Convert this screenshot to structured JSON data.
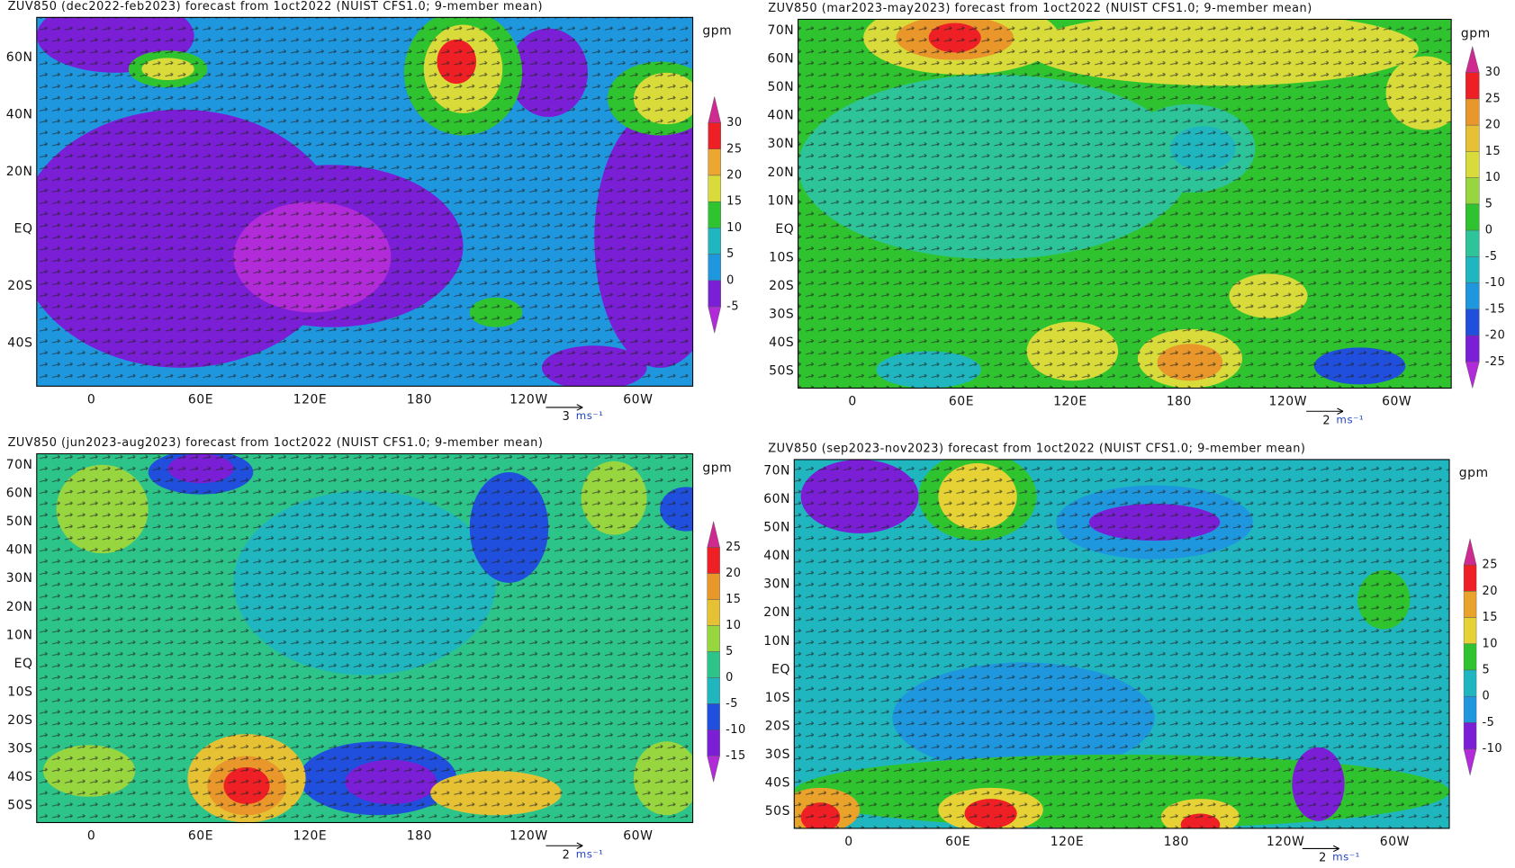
{
  "panels": [
    {
      "title": "ZUV850 (dec2022-feb2023) forecast from 1oct2022 (NUIST CFS1.0; 9-member mean)",
      "unit": "gpm",
      "lat_labels": [
        "60N",
        "40N",
        "20N",
        "EQ",
        "20S",
        "40S"
      ],
      "lon_labels": [
        "0",
        "60E",
        "120E",
        "180",
        "120W",
        "60W"
      ],
      "colorbar": {
        "labels": [
          30,
          25,
          20,
          15,
          10,
          5,
          0,
          -5
        ],
        "colors": [
          "#cf2a90",
          "#ee1f25",
          "#eca731",
          "#d8db3a",
          "#2fc42f",
          "#1fb6c0",
          "#1f97de",
          "#7a1fd6",
          "#b22bd8"
        ]
      },
      "vector_key": {
        "magnitude": 3,
        "unit": "ms⁻¹"
      }
    },
    {
      "title": "ZUV850 (mar2023-may2023) forecast from 1oct2022 (NUIST CFS1.0; 9-member mean)",
      "unit": "gpm",
      "lat_labels": [
        "70N",
        "60N",
        "50N",
        "40N",
        "30N",
        "20N",
        "10N",
        "EQ",
        "10S",
        "20S",
        "30S",
        "40S",
        "50S"
      ],
      "lon_labels": [
        "0",
        "60E",
        "120E",
        "180",
        "120W",
        "60W"
      ],
      "colorbar": {
        "labels": [
          30,
          25,
          20,
          15,
          10,
          5,
          0,
          -5,
          -10,
          -15,
          -20,
          -25
        ],
        "colors": [
          "#cf2a90",
          "#ee1f25",
          "#e9962a",
          "#e6c134",
          "#d8db3a",
          "#98d640",
          "#2fc42f",
          "#2dc49a",
          "#1fb6c0",
          "#1f97de",
          "#1f4fdc",
          "#7a1fd6",
          "#b22bd8"
        ]
      },
      "vector_key": {
        "magnitude": 2,
        "unit": "ms⁻¹"
      }
    },
    {
      "title": "ZUV850 (jun2023-aug2023) forecast from 1oct2022 (NUIST CFS1.0; 9-member mean)",
      "unit": "gpm",
      "lat_labels": [
        "70N",
        "60N",
        "50N",
        "40N",
        "30N",
        "20N",
        "10N",
        "EQ",
        "10S",
        "20S",
        "30S",
        "40S",
        "50S"
      ],
      "lon_labels": [
        "0",
        "60E",
        "120E",
        "180",
        "120W",
        "60W"
      ],
      "colorbar": {
        "labels": [
          25,
          20,
          15,
          10,
          5,
          0,
          -5,
          -10,
          -15
        ],
        "colors": [
          "#cf2a90",
          "#ee1f25",
          "#e9962a",
          "#e6c134",
          "#98d640",
          "#2dc48a",
          "#1fb6c0",
          "#1f4fdc",
          "#7a1fd6",
          "#b22bd8"
        ]
      },
      "vector_key": {
        "magnitude": 2,
        "unit": "ms⁻¹"
      }
    },
    {
      "title": "ZUV850 (sep2023-nov2023) forecast from 1oct2022 (NUIST CFS1.0; 9-member mean)",
      "unit": "gpm",
      "lat_labels": [
        "70N",
        "60N",
        "50N",
        "40N",
        "30N",
        "20N",
        "10N",
        "EQ",
        "10S",
        "20S",
        "30S",
        "40S",
        "50S"
      ],
      "lon_labels": [
        "0",
        "60E",
        "120E",
        "180",
        "120W",
        "60W"
      ],
      "colorbar": {
        "labels": [
          25,
          20,
          15,
          10,
          5,
          0,
          -5,
          -10
        ],
        "colors": [
          "#cf2a90",
          "#ee1f25",
          "#e9a22a",
          "#e6d234",
          "#2fc42f",
          "#1fb6c0",
          "#1f97de",
          "#7a1fd6",
          "#b22bd8"
        ]
      },
      "vector_key": {
        "magnitude": 2,
        "unit": "ms⁻¹"
      }
    }
  ]
}
